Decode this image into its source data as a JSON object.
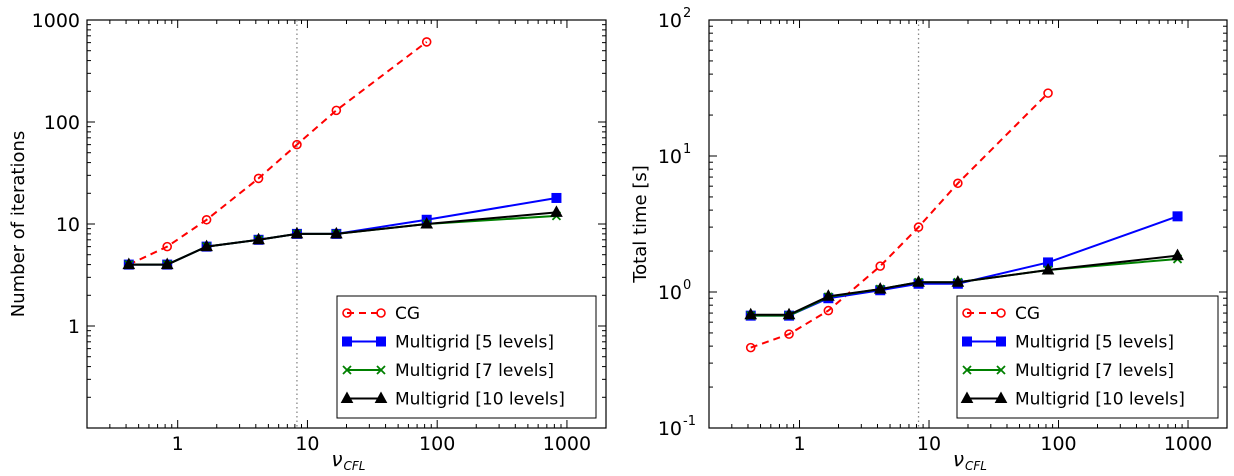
{
  "chart_data": [
    {
      "type": "line",
      "xscale": "log",
      "yscale": "log",
      "xlim": [
        0.2,
        2000
      ],
      "ylim": [
        0.1,
        1000
      ],
      "xticks": [
        1,
        10,
        100,
        1000
      ],
      "xtick_labels": [
        "1",
        "10",
        "100",
        "1000"
      ],
      "yticks": [
        1,
        10,
        100,
        1000
      ],
      "ytick_labels": [
        "1",
        "10",
        "100",
        "1000"
      ],
      "xlabel": "ν_CFL",
      "xlabel_main": "ν",
      "xlabel_sub": "CFL",
      "ylabel": "Number of iterations",
      "vline_x": 8.3,
      "legend_position": "bottom-right",
      "series": [
        {
          "name": "CG",
          "color": "#ff0000",
          "marker": "circle-open",
          "dash": true,
          "x": [
            0.42,
            0.83,
            1.67,
            4.2,
            8.3,
            16.7,
            83
          ],
          "y": [
            4,
            6,
            11,
            28,
            60,
            130,
            610
          ]
        },
        {
          "name": "Multigrid [5 levels]",
          "color": "#0000ff",
          "marker": "square",
          "dash": false,
          "x": [
            0.42,
            0.83,
            1.67,
            4.2,
            8.3,
            16.7,
            83,
            830
          ],
          "y": [
            4,
            4,
            6,
            7,
            8,
            8,
            11,
            18
          ]
        },
        {
          "name": "Multigrid [7 levels]",
          "color": "#008000",
          "marker": "x",
          "dash": false,
          "x": [
            0.42,
            0.83,
            1.67,
            4.2,
            8.3,
            16.7,
            83,
            830
          ],
          "y": [
            4,
            4,
            6,
            7,
            8,
            8,
            10,
            12
          ]
        },
        {
          "name": "Multigrid [10 levels]",
          "color": "#000000",
          "marker": "triangle",
          "dash": false,
          "x": [
            0.42,
            0.83,
            1.67,
            4.2,
            8.3,
            16.7,
            83,
            830
          ],
          "y": [
            4,
            4,
            6,
            7,
            8,
            8,
            10,
            13
          ]
        }
      ]
    },
    {
      "type": "line",
      "xscale": "log",
      "yscale": "log",
      "xlim": [
        0.2,
        2000
      ],
      "ylim": [
        0.1,
        100
      ],
      "xticks": [
        1,
        10,
        100,
        1000
      ],
      "xtick_labels": [
        "1",
        "10",
        "100",
        "1000"
      ],
      "yticks": [
        0.1,
        1,
        10,
        100
      ],
      "ytick_base": "10",
      "ytick_exponents": [
        "-1",
        "0",
        "1",
        "2"
      ],
      "xlabel": "ν_CFL",
      "xlabel_main": "ν",
      "xlabel_sub": "CFL",
      "ylabel": "Total time [s]",
      "vline_x": 8.3,
      "legend_position": "bottom-right",
      "series": [
        {
          "name": "CG",
          "color": "#ff0000",
          "marker": "circle-open",
          "dash": true,
          "x": [
            0.42,
            0.83,
            1.67,
            4.2,
            8.3,
            16.7,
            83
          ],
          "y": [
            0.39,
            0.49,
            0.73,
            1.55,
            3.0,
            6.3,
            29
          ]
        },
        {
          "name": "Multigrid [5 levels]",
          "color": "#0000ff",
          "marker": "square",
          "dash": false,
          "x": [
            0.42,
            0.83,
            1.67,
            4.2,
            8.3,
            16.7,
            83,
            830
          ],
          "y": [
            0.67,
            0.67,
            0.9,
            1.03,
            1.15,
            1.15,
            1.65,
            3.6
          ]
        },
        {
          "name": "Multigrid [7 levels]",
          "color": "#008000",
          "marker": "x",
          "dash": false,
          "x": [
            0.42,
            0.83,
            1.67,
            4.2,
            8.3,
            16.7,
            83,
            830
          ],
          "y": [
            0.67,
            0.67,
            0.92,
            1.05,
            1.18,
            1.18,
            1.45,
            1.75
          ]
        },
        {
          "name": "Multigrid [10 levels]",
          "color": "#000000",
          "marker": "triangle",
          "dash": false,
          "x": [
            0.42,
            0.83,
            1.67,
            4.2,
            8.3,
            16.7,
            83,
            830
          ],
          "y": [
            0.68,
            0.68,
            0.93,
            1.05,
            1.18,
            1.18,
            1.45,
            1.85
          ]
        }
      ]
    }
  ]
}
